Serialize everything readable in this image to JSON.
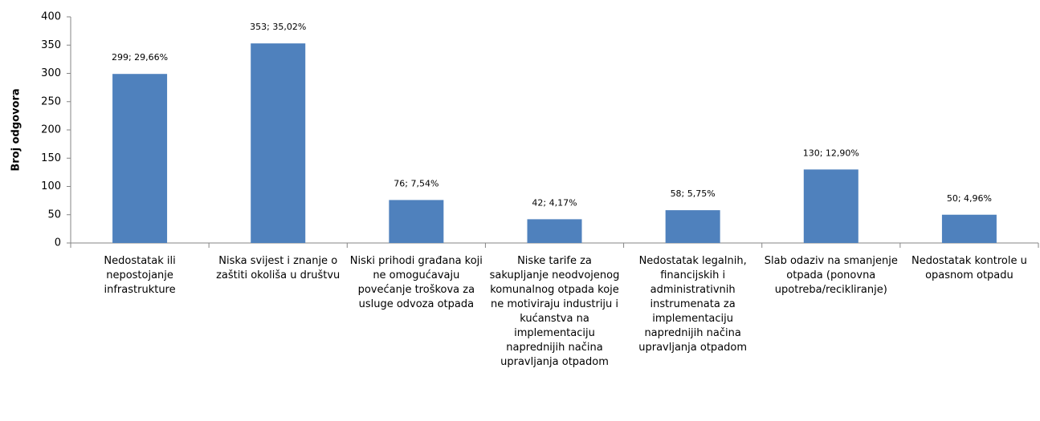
{
  "chart_data": {
    "type": "bar",
    "y_label": "Broj odgovora",
    "categories": [
      "Nedostatak ili nepostojanje infrastrukture",
      "Niska svijest i znanje o zaštiti okoliša u društvu",
      "Niski prihodi građana koji ne omogućavaju povećanje troškova za usluge odvoza otpada",
      "Niske tarife za sakupljanje neodvojenog komunalnog otpada koje ne motiviraju industriju i kućanstva na implementaciju naprednijih načina upravljanja otpadom",
      "Nedostatak legalnih, financijskih i administrativnih instrumenata za implementaciju naprednijih načina upravljanja otpadom",
      "Slab odaziv na smanjenje otpada (ponovna upotreba/recikliranje)",
      "Nedostatak kontrole u opasnom otpadu"
    ],
    "values": [
      299,
      353,
      76,
      42,
      58,
      130,
      50
    ],
    "value_labels": [
      "299; 29,66%",
      "353; 35,02%",
      "76; 7,54%",
      "42; 4,17%",
      "58; 5,75%",
      "130; 12,90%",
      "50; 4,96%"
    ],
    "color": "#4f81bd",
    "ylim": [
      0,
      400
    ],
    "yticks": [
      0,
      50,
      100,
      150,
      200,
      250,
      300,
      350,
      400
    ],
    "grid": false
  }
}
